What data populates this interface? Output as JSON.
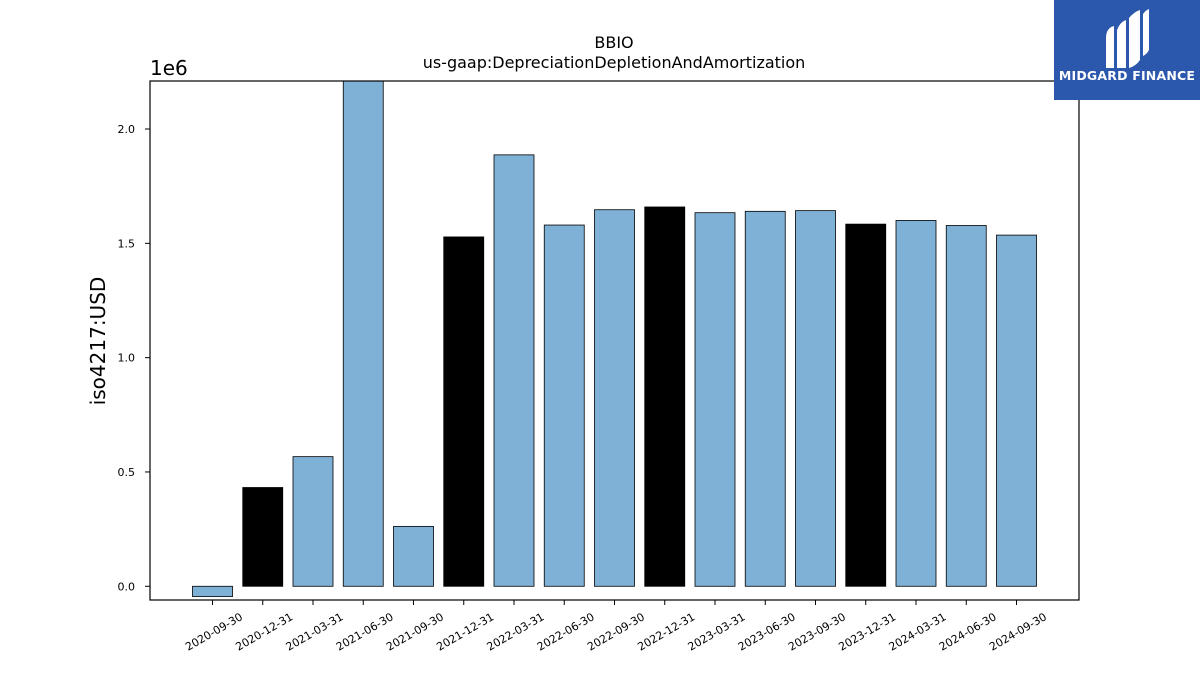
{
  "chart_data": {
    "type": "bar",
    "title": "BBIO",
    "subtitle": "us-gaap:DepreciationDepletionAndAmortization",
    "ylabel": "iso4217:USD",
    "xlabel": "",
    "y_scale_label": "1e6",
    "ylim": [
      -0.06,
      2.21
    ],
    "yticks": [
      "0.0",
      "0.5",
      "1.0",
      "1.5",
      "2.0"
    ],
    "categories": [
      "2020-09-30",
      "2020-12-31",
      "2021-03-31",
      "2021-06-30",
      "2021-09-30",
      "2021-12-31",
      "2022-03-31",
      "2022-06-30",
      "2022-09-30",
      "2022-12-31",
      "2023-03-31",
      "2023-06-30",
      "2023-09-30",
      "2023-12-31",
      "2024-03-31",
      "2024-06-30",
      "2024-09-30"
    ],
    "values": [
      -0.045,
      0.432,
      0.567,
      2.22,
      0.262,
      1.528,
      1.887,
      1.58,
      1.647,
      1.659,
      1.634,
      1.64,
      1.643,
      1.584,
      1.6,
      1.578,
      1.536
    ],
    "annual": [
      false,
      true,
      false,
      false,
      false,
      true,
      false,
      false,
      false,
      true,
      false,
      false,
      false,
      true,
      false,
      false,
      false
    ],
    "colors": {
      "quarterly": "#7fb0d5",
      "annual": "#000000"
    },
    "grid": false,
    "legend": "none"
  },
  "logo": {
    "text": "MIDGARD FINANCE",
    "icon": "midgard-logo-icon"
  }
}
